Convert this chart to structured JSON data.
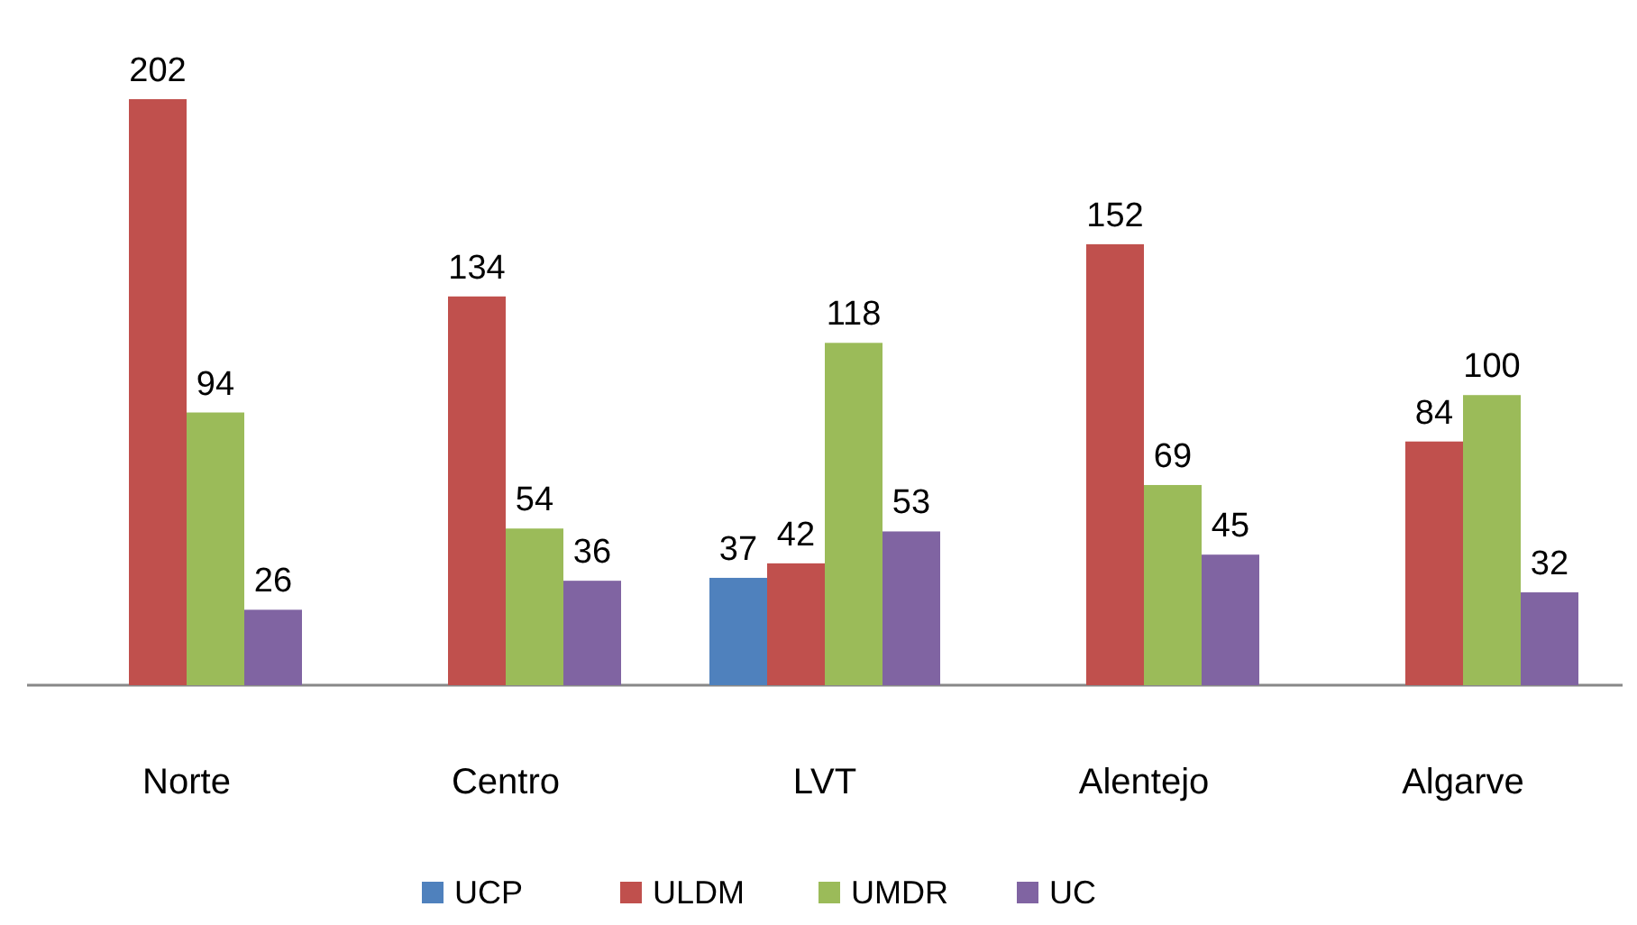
{
  "chart_data": {
    "type": "bar",
    "categories": [
      "Norte",
      "Centro",
      "LVT",
      "Alentejo",
      "Algarve"
    ],
    "series": [
      {
        "name": "UCP",
        "color": "#4f81bd",
        "values": [
          null,
          null,
          37,
          null,
          null
        ]
      },
      {
        "name": "ULDM",
        "color": "#c0504d",
        "values": [
          202,
          134,
          42,
          152,
          84
        ]
      },
      {
        "name": "UMDR",
        "color": "#9bbb59",
        "values": [
          94,
          54,
          118,
          69,
          100
        ]
      },
      {
        "name": "UC",
        "color": "#8064a2",
        "values": [
          26,
          36,
          53,
          45,
          32
        ]
      }
    ],
    "data_labels": true,
    "grid": false,
    "legend": "bottom"
  }
}
